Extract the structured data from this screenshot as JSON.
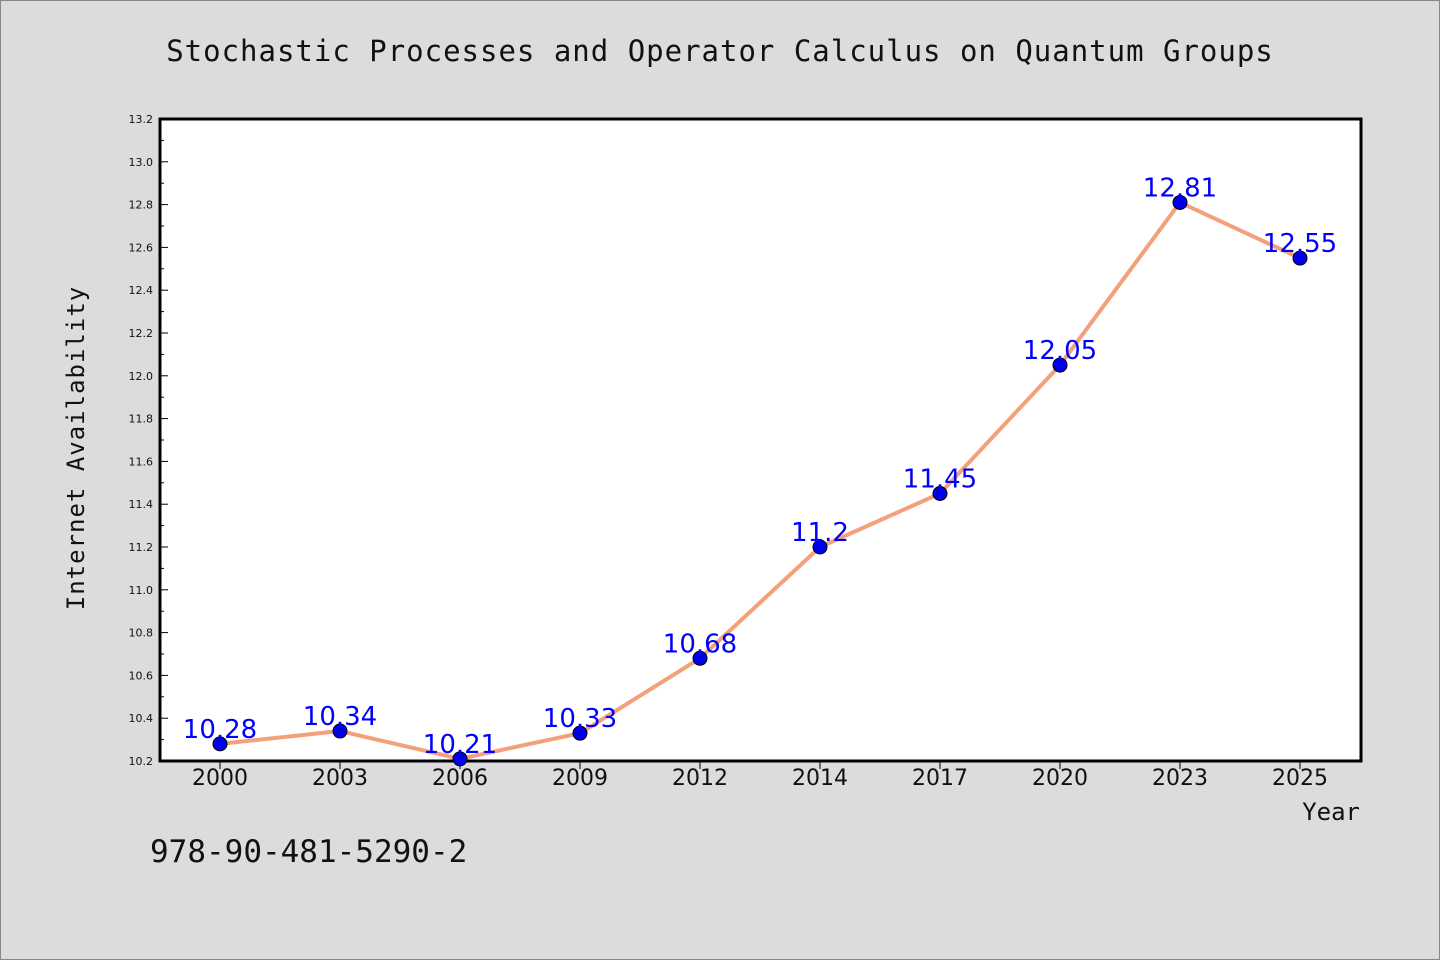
{
  "chart_data": {
    "type": "line",
    "title": "Stochastic Processes and Operator Calculus on Quantum Groups",
    "xlabel": "Year",
    "ylabel": "Internet Availability",
    "categories": [
      "2000",
      "2003",
      "2006",
      "2009",
      "2012",
      "2014",
      "2017",
      "2020",
      "2023",
      "2025"
    ],
    "series": [
      {
        "values": [
          10.28,
          10.34,
          10.21,
          10.33,
          10.68,
          11.2,
          11.45,
          12.05,
          12.81,
          12.55
        ],
        "data_labels": [
          "10.28",
          "10.34",
          "10.21",
          "10.33",
          "10.68",
          "11.2",
          "11.45",
          "12.05",
          "12.81",
          "12.55"
        ],
        "line_color": "#f4a07a",
        "marker_color": "#0000ee",
        "label_color": "#0000ff"
      }
    ],
    "ylim": [
      10.2,
      13.2
    ],
    "yticks": [
      "10.2",
      "10.4",
      "10.6",
      "10.8",
      "11.0",
      "11.2",
      "11.4",
      "11.6",
      "11.8",
      "12.0",
      "12.2",
      "12.4",
      "12.6",
      "12.8",
      "13.0",
      "13.2"
    ],
    "grid": false,
    "legend": "none"
  },
  "footer": {
    "isbn": "978-90-481-5290-2"
  }
}
